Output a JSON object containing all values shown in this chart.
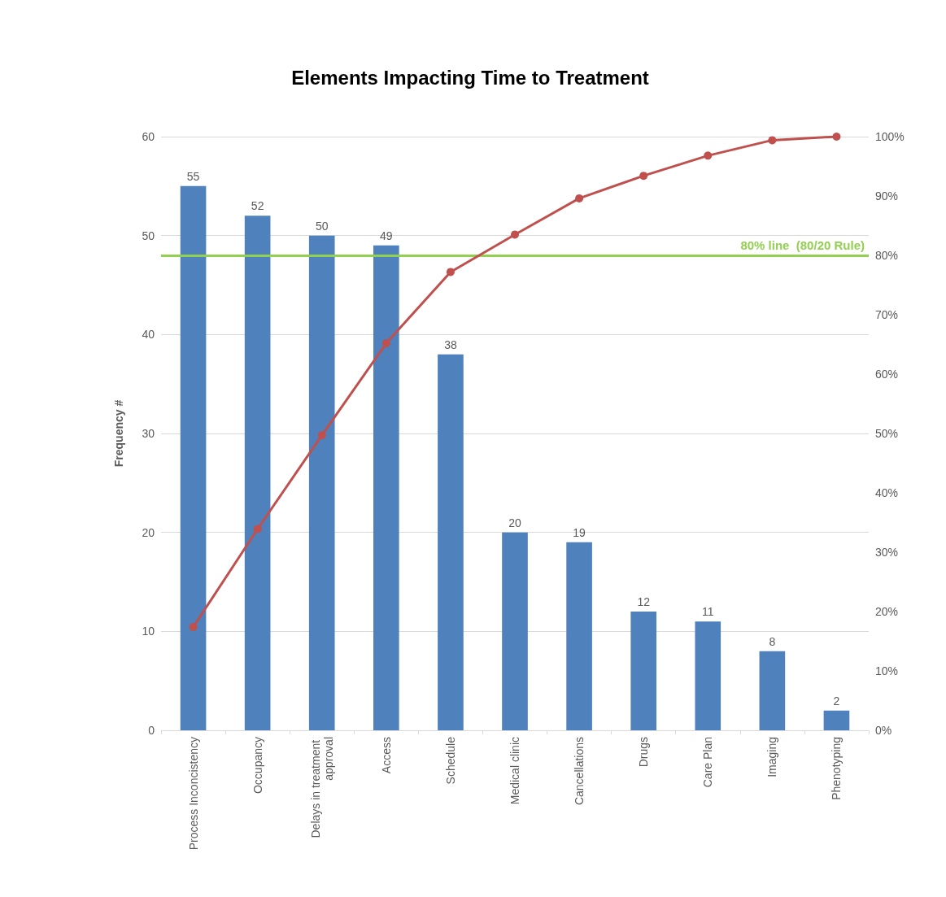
{
  "chart_data": {
    "type": "bar",
    "title": "Elements Impacting Time to Treatment",
    "ylabel": "Frequency #",
    "categories": [
      "Process Inconcistency",
      "Occupancy",
      "Delays in treatment approval",
      "Access",
      "Schedule",
      "Medical clinic",
      "Cancellations",
      "Drugs",
      "Care Plan",
      "Imaging",
      "Phenotyping"
    ],
    "series": [
      {
        "color": "#4f81bd",
        "values": [
          55,
          52,
          50,
          49,
          38,
          20,
          19,
          12,
          11,
          8,
          2
        ],
        "value_labels": [
          "55",
          "52",
          "50",
          "49",
          "38",
          "20",
          "19",
          "12",
          "11",
          "8",
          "2"
        ]
      },
      {
        "type": "line",
        "axis": "y2",
        "color": "#c0504d",
        "values": [
          17.4,
          33.9,
          49.7,
          65.2,
          77.2,
          83.5,
          89.6,
          93.4,
          96.8,
          99.4,
          100
        ]
      }
    ],
    "ylim": [
      0,
      60
    ],
    "yticks": [
      0,
      10,
      20,
      30,
      40,
      50,
      60
    ],
    "y2lim": [
      0,
      100
    ],
    "y2ticks": [
      {
        "value": 0,
        "label": "0%"
      },
      {
        "value": 10,
        "label": "10%"
      },
      {
        "value": 20,
        "label": "20%"
      },
      {
        "value": 30,
        "label": "30%"
      },
      {
        "value": 40,
        "label": "40%"
      },
      {
        "value": 50,
        "label": "50%"
      },
      {
        "value": 60,
        "label": "60%"
      },
      {
        "value": 70,
        "label": "70%"
      },
      {
        "value": 80,
        "label": "80%"
      },
      {
        "value": 90,
        "label": "90%"
      },
      {
        "value": 100,
        "label": "100%"
      }
    ],
    "ref_lines": [
      {
        "axis": "y2",
        "value": 80,
        "label": "80% line  (80/20 Rule)",
        "color": "#92d050"
      }
    ],
    "grid": "y",
    "marker": "circle"
  }
}
